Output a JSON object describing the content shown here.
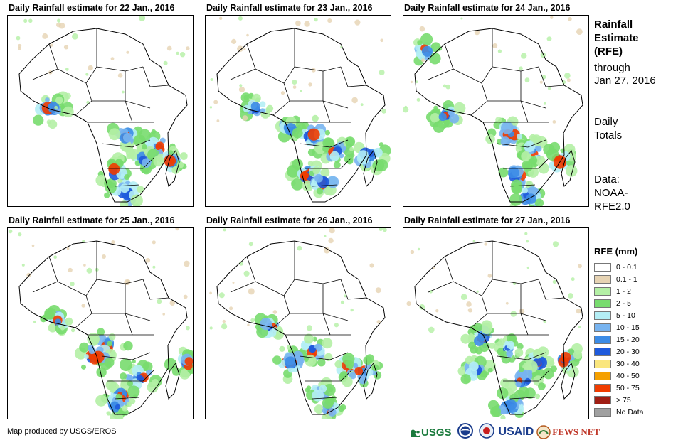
{
  "panels": [
    {
      "title": "Daily Rainfall estimate for 22 Jan., 2016"
    },
    {
      "title": "Daily Rainfall estimate for 23 Jan., 2016"
    },
    {
      "title": "Daily Rainfall estimate for 24 Jan., 2016"
    },
    {
      "title": "Daily Rainfall estimate for 25 Jan., 2016"
    },
    {
      "title": "Daily Rainfall estimate for 26 Jan., 2016"
    },
    {
      "title": "Daily Rainfall estimate for 27 Jan., 2016"
    }
  ],
  "side": {
    "title_l1": "Rainfall",
    "title_l2": "Estimate",
    "title_l3": "(RFE)",
    "through": "through",
    "date": "Jan 27, 2016",
    "totals_l1": "Daily",
    "totals_l2": "Totals",
    "data_l1": "Data:",
    "data_l2": "NOAA-",
    "data_l3": "RFE2.0"
  },
  "legend": {
    "title": "RFE (mm)",
    "items": [
      {
        "label": "0 - 0.1",
        "color": "#ffffff"
      },
      {
        "label": "0.1 - 1",
        "color": "#e6d3b3"
      },
      {
        "label": "1 - 2",
        "color": "#b4f0a5"
      },
      {
        "label": "2 - 5",
        "color": "#78dc6e"
      },
      {
        "label": "5 - 10",
        "color": "#b4eef5"
      },
      {
        "label": "10 - 15",
        "color": "#78b4f0"
      },
      {
        "label": "15 - 20",
        "color": "#3c8ce6"
      },
      {
        "label": "20 - 30",
        "color": "#1e5adc"
      },
      {
        "label": "30 - 40",
        "color": "#fae67d"
      },
      {
        "label": "40 - 50",
        "color": "#f5a000"
      },
      {
        "label": "50 - 75",
        "color": "#f03c00"
      },
      {
        "label": "> 75",
        "color": "#a01e14"
      },
      {
        "label": "No Data",
        "color": "#a0a0a0"
      }
    ]
  },
  "credit": "Map produced by USGS/EROS",
  "logos": {
    "usgs": "USGS",
    "usaid": "USAID",
    "fewsnet": "FEWS NET"
  }
}
